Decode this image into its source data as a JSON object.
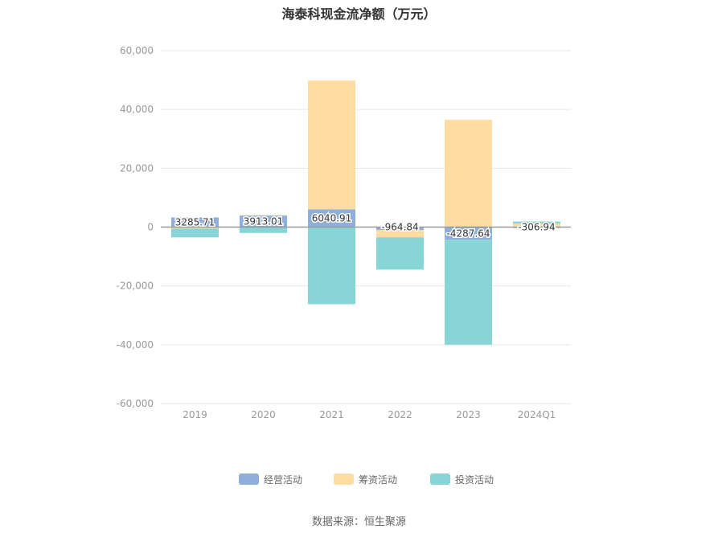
{
  "chart_data": {
    "type": "bar",
    "stacked": true,
    "title": "海泰科现金流净额（万元）",
    "categories": [
      "2019",
      "2020",
      "2021",
      "2022",
      "2023",
      "2024Q1"
    ],
    "ylim": [
      -60000,
      60000
    ],
    "yticks": [
      60000,
      40000,
      20000,
      0,
      -20000,
      -40000,
      -60000
    ],
    "ytick_labels": [
      "60,000",
      "40,000",
      "20,000",
      "0",
      "-20,000",
      "-40,000",
      "-60,000"
    ],
    "grid": true,
    "legend_position": "bottom",
    "series": [
      {
        "name": "经营活动",
        "color": "#8eaedc",
        "values": [
          3285.71,
          3913.01,
          6040.91,
          -964.84,
          -4287.64,
          -306.94
        ],
        "labels": [
          "3285.71",
          "3913.01",
          "6040.91",
          "-964.84",
          "-4287.64",
          "-306.94"
        ]
      },
      {
        "name": "筹资活动",
        "color": "#ffdca1",
        "values": [
          -500,
          200,
          43800,
          -2500,
          36500,
          1200
        ]
      },
      {
        "name": "投资活动",
        "color": "#88d5d7",
        "values": [
          -3000,
          -2000,
          -26200,
          -11000,
          -35700,
          700
        ]
      }
    ]
  },
  "source": "数据来源：恒生聚源"
}
